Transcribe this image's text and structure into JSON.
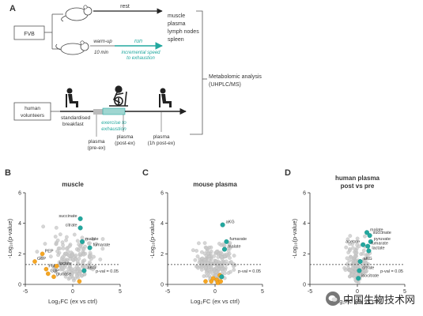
{
  "panel_a": {
    "letter": "A",
    "mouse_label": "FVB",
    "rest_label": "rest",
    "warmup_label": "warm-up",
    "warmup_time": "10 min",
    "run_label": "run",
    "run_sub1": "incremental speed",
    "run_sub2": "to exhaustion",
    "tissues": [
      "muscle",
      "plasma",
      "lymph nodes",
      "spleen"
    ],
    "analysis1": "Metabolomic analysis",
    "analysis2": "(UHPLC/MS)",
    "human_label1": "human",
    "human_label2": "volunteers",
    "breakfast1": "standardised",
    "breakfast2": "breakfast",
    "exercise1": "exercise to",
    "exercise2": "exhaustion",
    "plasma_pre": [
      "plasma",
      "(pre-ex)"
    ],
    "plasma_post": [
      "plasma",
      "(post-ex)"
    ],
    "plasma_1h": [
      "plasma",
      "(1h post-ex)"
    ],
    "colors": {
      "teal": "#23a89f",
      "orange": "#f5a623",
      "gray": "#c8c8c8"
    }
  },
  "chart_data": [
    {
      "type": "scatter",
      "letter": "B",
      "title": "muscle",
      "xlabel": "Log₂FC (ex vs ctrl)",
      "ylabel": "-Log₁₀(p-value)",
      "xlim": [
        -5,
        5
      ],
      "ylim": [
        0,
        6
      ],
      "xticks": [
        -5,
        0,
        5
      ],
      "yticks": [
        0,
        2,
        4,
        6
      ],
      "threshold": {
        "y": 1.3,
        "label": "p-val = 0.05"
      },
      "teal_points": [
        {
          "x": 0.8,
          "y": 4.3,
          "label": "succinate"
        },
        {
          "x": 0.8,
          "y": 3.7,
          "label": "citrate"
        },
        {
          "x": 1.0,
          "y": 2.8,
          "label": "malate"
        },
        {
          "x": 1.8,
          "y": 2.4,
          "label": "fumarate"
        },
        {
          "x": 1.2,
          "y": 0.9,
          "label": "aKG"
        }
      ],
      "orange_points": [
        {
          "x": -3.2,
          "y": 2.0,
          "label": "PEP"
        },
        {
          "x": -4.0,
          "y": 1.5,
          "label": "G6P"
        },
        {
          "x": -2.8,
          "y": 1.0,
          "label": "F6P"
        },
        {
          "x": -2.6,
          "y": 0.7,
          "label": "G3P"
        },
        {
          "x": -1.7,
          "y": 1.2,
          "label": "lactate"
        },
        {
          "x": -2.0,
          "y": 0.5,
          "label": "glucose"
        },
        {
          "x": 0.7,
          "y": 0.2,
          "label": ""
        }
      ],
      "gray_seed": 11,
      "gray_count": 170,
      "gray_spread": {
        "sx": 1.3,
        "cy": 1.2
      }
    },
    {
      "type": "scatter",
      "letter": "C",
      "title": "mouse plasma",
      "xlabel": "Log₂FC (ex vs ctrl)",
      "ylabel": "-Log₁₀(p-value)",
      "xlim": [
        -5,
        5
      ],
      "ylim": [
        0,
        6
      ],
      "xticks": [
        -5,
        0,
        5
      ],
      "yticks": [
        0,
        2,
        4,
        6
      ],
      "threshold": {
        "y": 1.3,
        "label": "p-val = 0.05"
      },
      "teal_points": [
        {
          "x": 0.8,
          "y": 3.9,
          "label": "aKG"
        },
        {
          "x": 1.2,
          "y": 2.8,
          "label": "fumarate"
        },
        {
          "x": 1.0,
          "y": 2.3,
          "label": "malate"
        },
        {
          "x": 0.7,
          "y": 0.5,
          "label": ""
        }
      ],
      "orange_points": [
        {
          "x": -0.4,
          "y": 0.2,
          "label": ""
        },
        {
          "x": -0.2,
          "y": 0.4,
          "label": ""
        },
        {
          "x": 0.2,
          "y": 0.3,
          "label": ""
        },
        {
          "x": 0.5,
          "y": 0.6,
          "label": ""
        },
        {
          "x": -1.0,
          "y": 0.2,
          "label": ""
        },
        {
          "x": 0.3,
          "y": 0.1,
          "label": ""
        },
        {
          "x": 0.6,
          "y": 0.2,
          "label": ""
        }
      ],
      "gray_seed": 23,
      "gray_count": 200,
      "gray_spread": {
        "sx": 0.9,
        "cy": 1.0
      }
    },
    {
      "type": "scatter",
      "letter": "D",
      "title": "human plasma",
      "subtitle": "post vs pre",
      "xlabel": "Log₂FC (ex vs ctrl)",
      "ylabel": "-Log₁₀(p-value)",
      "xlim": [
        -5,
        5
      ],
      "ylim": [
        0,
        6
      ],
      "xticks": [
        -5,
        0,
        5
      ],
      "yticks": [
        0,
        2,
        4,
        6
      ],
      "threshold": {
        "y": 1.3,
        "label": "p-val = 0.05"
      },
      "teal_points": [
        {
          "x": 1.0,
          "y": 3.4,
          "label": "malate"
        },
        {
          "x": 1.3,
          "y": 3.2,
          "label": "succinate"
        },
        {
          "x": 1.4,
          "y": 2.8,
          "label": "pyruvate"
        },
        {
          "x": 0.6,
          "y": 2.6,
          "label": "acetate"
        },
        {
          "x": 1.1,
          "y": 2.5,
          "label": "fumarate"
        },
        {
          "x": 1.2,
          "y": 2.2,
          "label": "lactate"
        },
        {
          "x": 0.3,
          "y": 1.5,
          "label": "aKG"
        },
        {
          "x": 0.2,
          "y": 0.9,
          "label": "citrate"
        },
        {
          "x": 0.1,
          "y": 0.4,
          "label": "isocitrate"
        }
      ],
      "orange_points": [],
      "gray_seed": 37,
      "gray_count": 150,
      "gray_spread": {
        "sx": 0.6,
        "cy": 1.1
      }
    }
  ],
  "watermark": "中国生物技术网"
}
